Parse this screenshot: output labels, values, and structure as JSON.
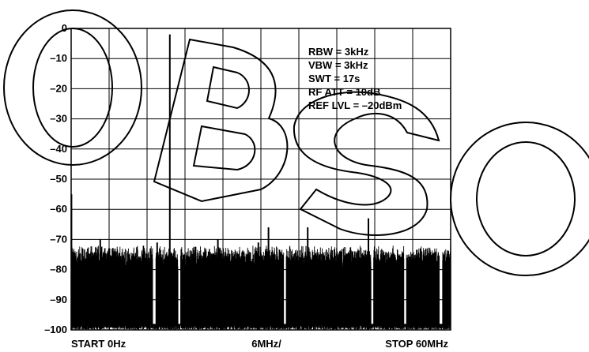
{
  "chart_data": {
    "type": "line",
    "title": "",
    "xlabel": "",
    "ylabel": "",
    "ylim": [
      -100,
      0
    ],
    "xlim": [
      0,
      60
    ],
    "y_ticks": [
      "0",
      "–10",
      "–20",
      "–30",
      "–40",
      "–50",
      "–60",
      "–70",
      "–80",
      "–90",
      "–100"
    ],
    "x_labels": {
      "start": "START 0Hz",
      "center": "6MHz/",
      "stop": "STOP 60MHz"
    },
    "grid": true,
    "settings": [
      "RBW = 3kHz",
      "VBW = 3kHz",
      "SWT = 17s",
      "RF ATT = 10dB",
      "REF LVL = –20dBm"
    ],
    "series": [
      {
        "noise_floor_dBm": [
          -100,
          -72
        ],
        "spurs": [
          {
            "x": 0.05,
            "y": -55
          },
          {
            "x": 4.6,
            "y": -70
          },
          {
            "x": 13.6,
            "y": -71
          },
          {
            "x": 15.6,
            "y": -2
          },
          {
            "x": 16.4,
            "y": -76
          },
          {
            "x": 23.2,
            "y": -70
          },
          {
            "x": 29.6,
            "y": -71
          },
          {
            "x": 31.2,
            "y": -66
          },
          {
            "x": 37.4,
            "y": -66
          },
          {
            "x": 47.0,
            "y": -63
          }
        ]
      }
    ]
  },
  "watermark": {
    "text": "OBSO"
  },
  "colors": {
    "trace": "#000000",
    "background": "#ffffff",
    "grid": "#000000"
  }
}
